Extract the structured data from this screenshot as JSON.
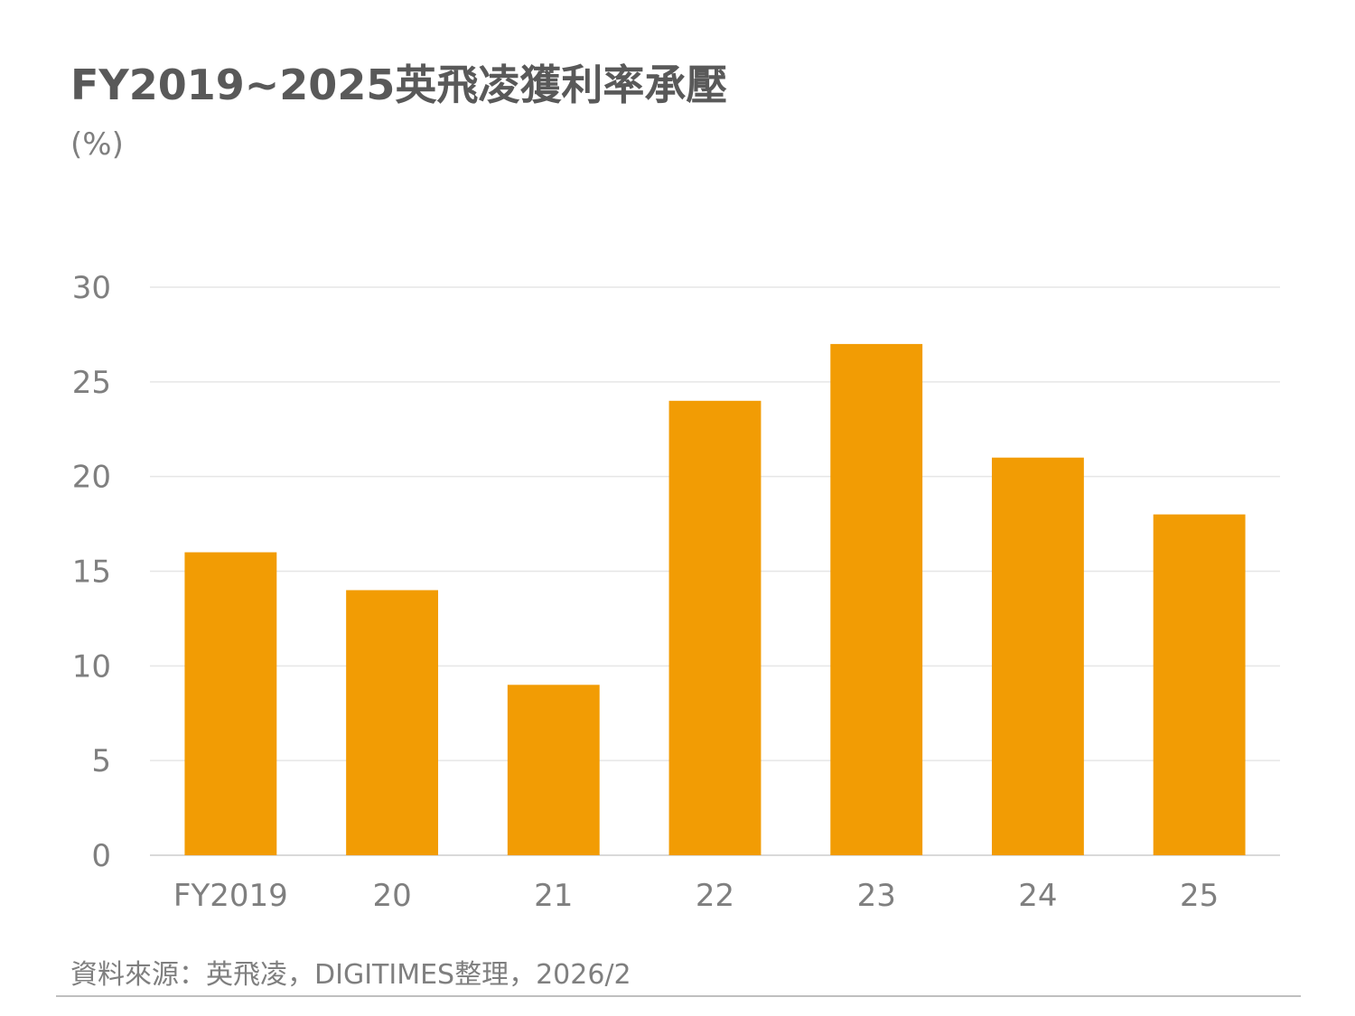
{
  "title": "FY2019~2025英飛凌獲利率承壓",
  "unit": "(%)",
  "source": "資料來源：英飛凌，DIGITIMES整理，2026/2",
  "colors": {
    "bar": "#f29c04",
    "grid": "#e6e6e6",
    "axis": "#d9d9d9",
    "tick_text": "#7f7f7f",
    "title": "#595959"
  },
  "chart_data": {
    "type": "bar",
    "title": "FY2019~2025英飛凌獲利率承壓",
    "xlabel": "",
    "ylabel": "(%)",
    "categories": [
      "FY2019",
      "20",
      "21",
      "22",
      "23",
      "24",
      "25"
    ],
    "values": [
      16,
      14,
      9,
      24,
      27,
      21,
      18
    ],
    "ylim": [
      0,
      30
    ],
    "yticks": [
      0,
      5,
      10,
      15,
      20,
      25,
      30
    ],
    "grid": true,
    "legend": "none"
  }
}
